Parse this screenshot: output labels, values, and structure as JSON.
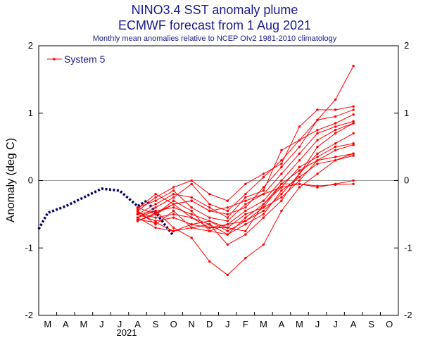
{
  "chart_data": {
    "type": "line",
    "title": "NINO3.4 SST anomaly plume",
    "subtitle": "ECMWF forecast from 1 Aug 2021",
    "caption": "Monthly mean anomalies relative to NCEP OIv2 1981-2010 climatology",
    "ylabel": "Anomaly (deg C)",
    "xlabel": "",
    "year_label": "2021",
    "ylim": [
      -2,
      2
    ],
    "yticks": [
      -2,
      -1,
      0,
      1,
      2
    ],
    "categories": [
      "M",
      "A",
      "M",
      "J",
      "J",
      "A",
      "S",
      "O",
      "N",
      "D",
      "J",
      "F",
      "M",
      "A",
      "M",
      "J",
      "J",
      "A",
      "S",
      "O"
    ],
    "grid": "zero line only",
    "legend": {
      "position": "top-left",
      "entries": [
        "System 5"
      ]
    },
    "colors": {
      "forecast": "#ff0000",
      "observed": "#000066",
      "text": "#1a1a8c"
    },
    "observed": {
      "name": "",
      "x": [
        -0.5,
        0.0,
        1.0,
        2.0,
        3.0,
        4.0,
        5.0,
        5.5,
        6.0,
        6.5,
        7.0
      ],
      "y": [
        -0.72,
        -0.48,
        -0.38,
        -0.25,
        -0.12,
        -0.15,
        -0.38,
        -0.3,
        -0.47,
        -0.65,
        -0.82
      ]
    },
    "series": [
      {
        "name": "",
        "x": [
          5,
          6,
          7,
          8,
          9,
          10,
          11,
          12,
          13,
          14,
          15,
          16,
          17
        ],
        "y": [
          -0.55,
          -0.4,
          -0.25,
          -0.05,
          -0.35,
          -0.45,
          -0.2,
          0.05,
          0.3,
          0.6,
          0.9,
          1.2,
          1.7
        ]
      },
      {
        "name": "",
        "x": [
          5,
          6,
          7,
          8,
          9,
          10,
          11,
          12,
          13,
          14,
          15,
          16,
          17
        ],
        "y": [
          -0.45,
          -0.25,
          -0.1,
          0.0,
          -0.2,
          -0.3,
          -0.05,
          0.1,
          0.25,
          0.8,
          1.05,
          1.05,
          1.1
        ]
      },
      {
        "name": "",
        "x": [
          5,
          6,
          7,
          8,
          9,
          10,
          11,
          12,
          13,
          14,
          15,
          16,
          17
        ],
        "y": [
          -0.6,
          -0.48,
          -0.35,
          -0.3,
          -0.45,
          -0.5,
          -0.4,
          -0.1,
          0.2,
          0.5,
          0.9,
          0.95,
          1.05
        ]
      },
      {
        "name": "",
        "x": [
          5,
          6,
          7,
          8,
          9,
          10,
          11,
          12,
          13,
          14,
          15,
          16,
          17
        ],
        "y": [
          -0.5,
          -0.35,
          -0.2,
          -0.25,
          -0.4,
          -0.55,
          -0.25,
          -0.15,
          0.45,
          0.6,
          0.75,
          0.85,
          0.98
        ]
      },
      {
        "name": "",
        "x": [
          5,
          6,
          7,
          8,
          9,
          10,
          11,
          12,
          13,
          14,
          15,
          16,
          17
        ],
        "y": [
          -0.4,
          -0.3,
          -0.15,
          -0.4,
          -0.55,
          -0.6,
          -0.35,
          -0.2,
          0.1,
          0.4,
          0.7,
          0.8,
          0.88
        ]
      },
      {
        "name": "",
        "x": [
          5,
          6,
          7,
          8,
          9,
          10,
          11,
          12,
          13,
          14,
          15,
          16,
          17
        ],
        "y": [
          -0.48,
          -0.55,
          -0.5,
          -0.55,
          -0.7,
          -0.65,
          -0.45,
          -0.3,
          0.0,
          0.3,
          0.6,
          0.75,
          0.85
        ]
      },
      {
        "name": "",
        "x": [
          5,
          6,
          7,
          8,
          9,
          10,
          11,
          12,
          13,
          14,
          15,
          16,
          17
        ],
        "y": [
          -0.55,
          -0.45,
          -0.4,
          -0.5,
          -0.6,
          -0.75,
          -0.6,
          -0.45,
          -0.2,
          0.1,
          0.4,
          0.55,
          0.7
        ]
      },
      {
        "name": "",
        "x": [
          5,
          6,
          7,
          8,
          9,
          10,
          11,
          12,
          13,
          14,
          15,
          16,
          17
        ],
        "y": [
          -0.6,
          -0.5,
          -0.3,
          -0.45,
          -0.75,
          -0.8,
          -0.55,
          -0.35,
          -0.1,
          0.2,
          0.35,
          0.5,
          0.55
        ]
      },
      {
        "name": "",
        "x": [
          5,
          6,
          7,
          8,
          9,
          10,
          11,
          12,
          13,
          14,
          15,
          16,
          17
        ],
        "y": [
          -0.5,
          -0.6,
          -0.55,
          -0.65,
          -0.7,
          -0.7,
          -0.5,
          -0.4,
          -0.25,
          0.0,
          0.3,
          0.45,
          0.53
        ]
      },
      {
        "name": "",
        "x": [
          5,
          6,
          7,
          8,
          9,
          10,
          11,
          12,
          13,
          14,
          15,
          16,
          17
        ],
        "y": [
          -0.58,
          -0.62,
          -0.75,
          -0.7,
          -0.75,
          -0.65,
          -0.6,
          -0.4,
          -0.05,
          0.15,
          0.3,
          0.35,
          0.4
        ]
      },
      {
        "name": "",
        "x": [
          5,
          6,
          7,
          8,
          9,
          10,
          11,
          12,
          13,
          14,
          15,
          16,
          17
        ],
        "y": [
          -0.42,
          -0.2,
          -0.35,
          -0.55,
          -0.65,
          -0.8,
          -0.65,
          -0.5,
          -0.15,
          0.05,
          0.25,
          0.3,
          0.37
        ]
      },
      {
        "name": "",
        "x": [
          5,
          6,
          7,
          8,
          9,
          10,
          11,
          12,
          13,
          14,
          15,
          16,
          17
        ],
        "y": [
          -0.55,
          -0.7,
          -0.75,
          -0.65,
          -0.6,
          -0.7,
          -0.75,
          -0.35,
          -0.05,
          -0.05,
          -0.1,
          -0.05,
          0.0
        ]
      },
      {
        "name": "",
        "x": [
          5,
          6,
          7,
          8,
          9,
          10,
          11,
          12,
          13,
          14,
          15,
          16,
          17
        ],
        "y": [
          -0.4,
          -0.5,
          -0.35,
          -0.3,
          -0.45,
          -0.4,
          -0.3,
          -0.2,
          -0.1,
          -0.05,
          -0.08,
          -0.06,
          -0.05
        ]
      },
      {
        "name": "",
        "x": [
          5,
          6,
          7,
          8,
          9,
          10,
          11,
          12,
          13,
          14,
          15,
          16,
          17
        ],
        "y": [
          -0.5,
          -0.45,
          -0.7,
          -0.85,
          -1.2,
          -1.4,
          -1.15,
          -0.95,
          -0.45,
          -0.1,
          0.1,
          0.3,
          0.4
        ]
      },
      {
        "name": "",
        "x": [
          5,
          6,
          7,
          8,
          9,
          10,
          11,
          12,
          13,
          14,
          15,
          16,
          17
        ],
        "y": [
          -0.45,
          -0.65,
          -0.45,
          -0.7,
          -0.65,
          -0.95,
          -0.8,
          -0.55,
          -0.3,
          0.1,
          0.5,
          0.7,
          0.85
        ]
      }
    ]
  }
}
